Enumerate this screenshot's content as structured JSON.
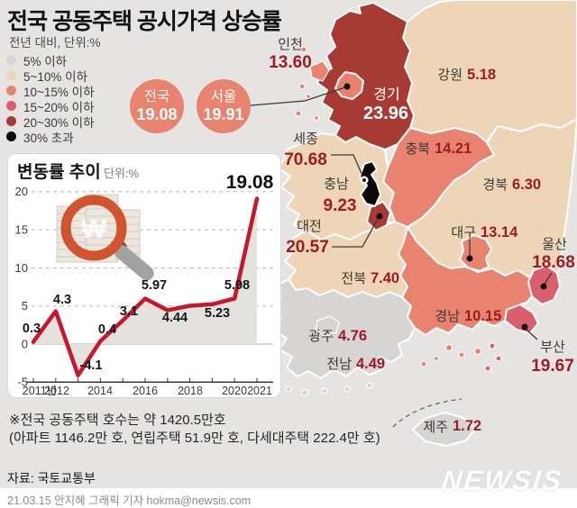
{
  "title": "전국 공동주택 공시가격 상승률",
  "subtitle": "전년 대비, 단위:%",
  "legend": {
    "items": [
      {
        "label": "5% 이하",
        "color": "#d7d5d3"
      },
      {
        "label": "5~10% 이하",
        "color": "#eed5b8"
      },
      {
        "label": "10~15% 이하",
        "color": "#e8836f"
      },
      {
        "label": "15~20% 이하",
        "color": "#d95f6e"
      },
      {
        "label": "20~30% 이하",
        "color": "#a73b33"
      },
      {
        "label": "30% 초과",
        "color": "#0a0a0a"
      }
    ]
  },
  "theme": {
    "accent_salmon": "#e8836f",
    "number_red": "#9e1b23",
    "line_red": "#c5182b",
    "background_gray": "#e6e4e2"
  },
  "badges": [
    {
      "name": "전국",
      "value": "19.08"
    },
    {
      "name": "서울",
      "value": "19.91"
    }
  ],
  "map": {
    "seoul_fill": "#e5816d"
  },
  "map_regions": [
    {
      "name": "인천",
      "value": "13.60",
      "category": 2
    },
    {
      "name": "경기",
      "value": "23.96",
      "category": 4
    },
    {
      "name": "강원",
      "value": "5.18",
      "category": 1
    },
    {
      "name": "충북",
      "value": "14.21",
      "category": 2
    },
    {
      "name": "경북",
      "value": "6.30",
      "category": 1
    },
    {
      "name": "세종",
      "value": "70.68",
      "category": 5
    },
    {
      "name": "충남",
      "value": "9.23",
      "category": 1
    },
    {
      "name": "대전",
      "value": "20.57",
      "category": 4
    },
    {
      "name": "대구",
      "value": "13.14",
      "category": 2
    },
    {
      "name": "울산",
      "value": "18.68",
      "category": 3
    },
    {
      "name": "전북",
      "value": "7.40",
      "category": 1
    },
    {
      "name": "경남",
      "value": "10.15",
      "category": 2
    },
    {
      "name": "광주",
      "value": "4.76",
      "category": 0
    },
    {
      "name": "전남",
      "value": "4.49",
      "category": 0
    },
    {
      "name": "부산",
      "value": "19.67",
      "category": 3
    },
    {
      "name": "제주",
      "value": "1.72",
      "category": 0
    }
  ],
  "chart": {
    "title": "변동률 추이",
    "unit": "단위:%"
  },
  "chart_data": [
    {
      "type": "line",
      "title": "변동률 추이",
      "unit": "단위:%",
      "x": [
        2011,
        2012,
        2013,
        2014,
        2015,
        2016,
        2017,
        2018,
        2019,
        2020,
        2021
      ],
      "x_tick_labels": [
        "2011년",
        "2012",
        "2014",
        "2016",
        "2018",
        "2020",
        "2021"
      ],
      "values": [
        0.3,
        4.3,
        -4.1,
        0.4,
        3.1,
        5.97,
        4.44,
        5.02,
        5.23,
        5.98,
        19.08
      ],
      "point_labels": [
        "0.3",
        "4.3",
        "-4.1",
        "0.4",
        "3.1",
        "5.97",
        "4.44",
        "",
        "5.23",
        "5.98",
        "19.08"
      ],
      "yticks": [
        20,
        15,
        10,
        5,
        0,
        -5
      ],
      "ylim": [
        -5,
        20
      ],
      "grid": "dashed-horizontal",
      "line_color": "#c5182b",
      "area_color": "#e4e2df"
    },
    {
      "type": "choropleth",
      "title": "전국 공동주택 공시가격 상승률",
      "unit": "%",
      "regions": [
        {
          "name": "전국",
          "value": 19.08
        },
        {
          "name": "서울",
          "value": 19.91
        },
        {
          "name": "인천",
          "value": 13.6
        },
        {
          "name": "경기",
          "value": 23.96
        },
        {
          "name": "강원",
          "value": 5.18
        },
        {
          "name": "충북",
          "value": 14.21
        },
        {
          "name": "경북",
          "value": 6.3
        },
        {
          "name": "세종",
          "value": 70.68
        },
        {
          "name": "충남",
          "value": 9.23
        },
        {
          "name": "대전",
          "value": 20.57
        },
        {
          "name": "대구",
          "value": 13.14
        },
        {
          "name": "울산",
          "value": 18.68
        },
        {
          "name": "전북",
          "value": 7.4
        },
        {
          "name": "경남",
          "value": 10.15
        },
        {
          "name": "광주",
          "value": 4.76
        },
        {
          "name": "전남",
          "value": 4.49
        },
        {
          "name": "부산",
          "value": 19.67
        },
        {
          "name": "제주",
          "value": 1.72
        }
      ]
    }
  ],
  "notes": {
    "line1": "※전국 공동주택 호수는 약 1420.5만호",
    "line2": "(아파트 1146.2만 호, 연립주택 51.9만 호, 다세대주택 222.4만 호)"
  },
  "source": "자료: 국토교통부",
  "byline": "21.03.15 안지혜 그래픽 기자 hokma@newsis.com",
  "logo": "NEWSIS"
}
